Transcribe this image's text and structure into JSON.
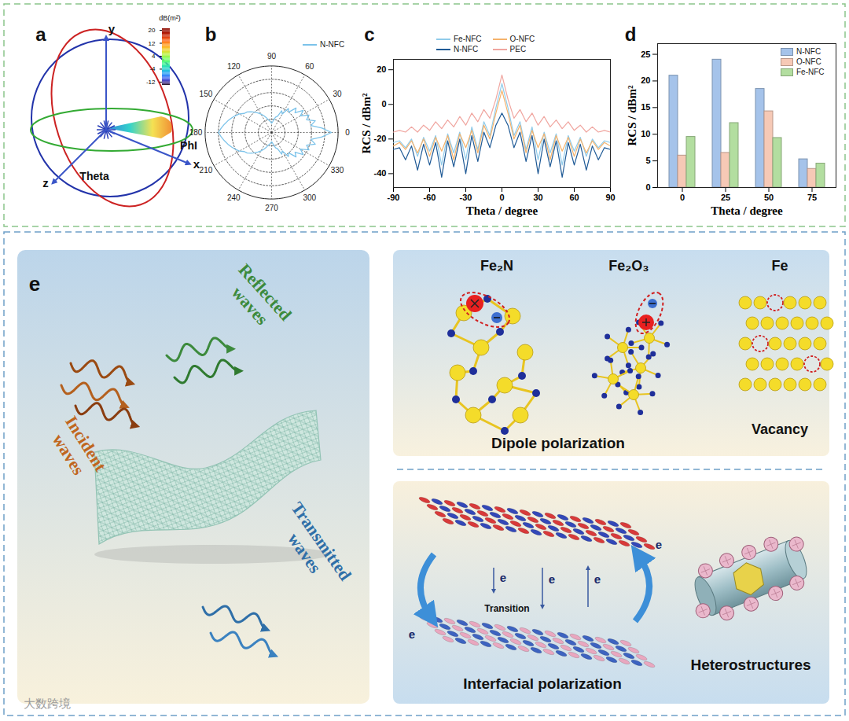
{
  "panel_a": {
    "label": "a",
    "axis_labels": [
      "x",
      "y",
      "z"
    ],
    "angle_labels": [
      "Theta",
      "PhI"
    ],
    "colorbar": {
      "label": "dB(m²)",
      "range": [
        -14,
        21
      ],
      "ticks": [
        20,
        12,
        4,
        -4,
        -12
      ]
    }
  },
  "chart_data": [
    {
      "panel": "b",
      "type": "polar",
      "x": [
        0,
        5,
        10,
        15,
        20,
        25,
        30,
        35,
        40,
        45,
        50,
        55,
        60,
        65,
        70,
        75,
        80,
        85,
        90,
        95,
        100,
        105,
        110,
        115,
        120,
        125,
        130,
        135,
        140,
        145,
        150,
        155,
        160,
        165,
        170,
        175,
        180,
        185,
        190,
        195,
        200,
        205,
        210,
        215,
        220,
        225,
        230,
        235,
        240,
        245,
        250,
        255,
        260,
        265,
        270,
        275,
        280,
        285,
        290,
        295,
        300,
        305,
        310,
        315,
        320,
        325,
        330,
        335,
        340,
        345,
        350,
        355
      ],
      "series": [
        {
          "name": "N-NFC",
          "color": "#7cc3ea",
          "values": [
            -5,
            -12,
            -20,
            -16,
            -22,
            -19,
            -25,
            -21,
            -27,
            -24,
            -30,
            -28,
            -34,
            -32,
            -37,
            -38,
            -40,
            -42,
            -43,
            -42,
            -41,
            -40,
            -38,
            -36,
            -34,
            -32,
            -30,
            -28,
            -26,
            -25,
            -22,
            -20,
            -18,
            -16,
            -14,
            -12,
            -10,
            -12,
            -14,
            -16,
            -18,
            -20,
            -22,
            -25,
            -26,
            -28,
            -30,
            -32,
            -34,
            -36,
            -38,
            -40,
            -41,
            -42,
            -43,
            -42,
            -40,
            -38,
            -37,
            -32,
            -34,
            -28,
            -30,
            -24,
            -27,
            -21,
            -25,
            -19,
            -22,
            -16,
            -20,
            -12
          ]
        }
      ],
      "xticks": [
        0,
        30,
        60,
        90,
        120,
        150,
        180,
        210,
        240,
        270,
        300,
        330
      ],
      "ylim": [
        -50,
        0
      ],
      "yticks": [
        -40,
        -30,
        -20,
        -10,
        0
      ],
      "tick_labels": "x",
      "grid": true,
      "legend": "top-right"
    },
    {
      "panel": "c",
      "type": "line",
      "x": [
        -90,
        -85,
        -80,
        -75,
        -70,
        -65,
        -60,
        -55,
        -50,
        -45,
        -40,
        -35,
        -30,
        -25,
        -20,
        -15,
        -10,
        -5,
        0,
        5,
        10,
        15,
        20,
        25,
        30,
        35,
        40,
        45,
        50,
        55,
        60,
        65,
        70,
        75,
        80,
        85,
        90
      ],
      "series": [
        {
          "name": "Fe-NFC",
          "color": "#8fcbea",
          "values": [
            -22,
            -21,
            -25,
            -20,
            -30,
            -19,
            -27,
            -18,
            -35,
            -17,
            -28,
            -16,
            -32,
            -13,
            -26,
            -10,
            -18,
            -2,
            12,
            -2,
            -18,
            -10,
            -26,
            -13,
            -32,
            -16,
            -28,
            -17,
            -35,
            -18,
            -27,
            -19,
            -30,
            -20,
            -25,
            -21,
            -22
          ]
        },
        {
          "name": "O-NFC",
          "color": "#f5b26b",
          "values": [
            -24,
            -22,
            -26,
            -21,
            -28,
            -20,
            -30,
            -19,
            -27,
            -18,
            -32,
            -17,
            -25,
            -15,
            -28,
            -12,
            -20,
            -5,
            8,
            -5,
            -20,
            -12,
            -28,
            -15,
            -25,
            -17,
            -32,
            -18,
            -27,
            -19,
            -30,
            -20,
            -28,
            -21,
            -26,
            -22,
            -24
          ]
        },
        {
          "name": "N-NFC",
          "color": "#1f5a96",
          "values": [
            -26,
            -25,
            -32,
            -24,
            -38,
            -23,
            -35,
            -22,
            -42,
            -21,
            -36,
            -20,
            -40,
            -18,
            -33,
            -16,
            -25,
            -12,
            -5,
            -12,
            -25,
            -16,
            -33,
            -18,
            -40,
            -20,
            -36,
            -21,
            -42,
            -22,
            -35,
            -23,
            -38,
            -24,
            -32,
            -25,
            -26
          ]
        },
        {
          "name": "PEC",
          "color": "#f0a6a0",
          "values": [
            -16,
            -15,
            -16,
            -13,
            -16,
            -12,
            -15,
            -10,
            -14,
            -9,
            -13,
            -7,
            -12,
            -5,
            -10,
            -3,
            -8,
            3,
            17,
            3,
            -8,
            -3,
            -10,
            -5,
            -12,
            -7,
            -13,
            -9,
            -14,
            -10,
            -15,
            -12,
            -16,
            -13,
            -16,
            -15,
            -16
          ]
        }
      ],
      "xlim": [
        -90,
        90
      ],
      "xticks": [
        -90,
        -60,
        -30,
        0,
        30,
        60,
        90
      ],
      "ylim": [
        -48,
        26
      ],
      "yticks": [
        -40,
        -20,
        0,
        20
      ],
      "xlabel": "Theta / degree",
      "ylabel": "RCS / dBm²",
      "grid": false,
      "legend": "top"
    },
    {
      "panel": "d",
      "type": "bar",
      "categories": [
        "0",
        "25",
        "50",
        "75"
      ],
      "series": [
        {
          "name": "N-NFC",
          "color": "#a5c3ea",
          "values": [
            21,
            24,
            18.5,
            5.3
          ]
        },
        {
          "name": "O-NFC",
          "color": "#f6c9b6",
          "values": [
            6,
            6.5,
            14.3,
            3.5
          ]
        },
        {
          "name": "Fe-NFC",
          "color": "#b3dea0",
          "values": [
            9.5,
            12.1,
            9.3,
            4.5
          ]
        }
      ],
      "ylim": [
        0,
        27
      ],
      "yticks": [
        0,
        5,
        10,
        15,
        20,
        25
      ],
      "xlabel": "Theta / degree",
      "ylabel": "RCS / dBm²",
      "grid": false,
      "legend": "top-right"
    }
  ],
  "panel_e": {
    "label": "e",
    "incident": "Incident waves",
    "reflected": "Reflected waves",
    "transmitted": "Transmitted waves",
    "materials": [
      "Fe₂N",
      "Fe₂O₃",
      "Fe"
    ],
    "dipole_caption": "Dipole polarization",
    "vacancy_caption": "Vacancy",
    "electron": "e",
    "transition": "Transition",
    "interface_caption": "Interfacial polarization",
    "heterostructure_caption": "Heterostructures"
  },
  "watermark": "大数跨境"
}
